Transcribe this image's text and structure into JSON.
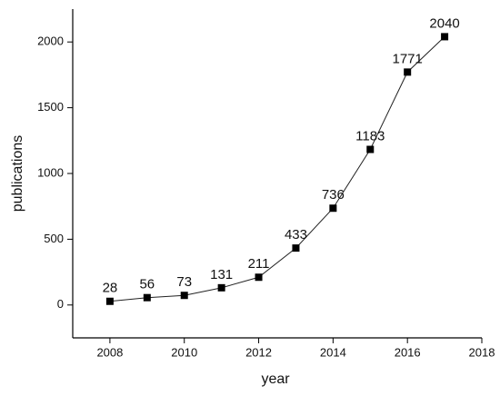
{
  "chart_data": {
    "type": "line",
    "x_label": "year",
    "y_label": "publications",
    "x": [
      2008,
      2009,
      2010,
      2011,
      2012,
      2013,
      2014,
      2015,
      2016,
      2017
    ],
    "series": [
      {
        "color": "#222222",
        "values": [
          28,
          56,
          73,
          131,
          211,
          433,
          736,
          1183,
          1771,
          2040
        ]
      }
    ],
    "xlim": [
      2007,
      2018
    ],
    "xticks": [
      2008,
      2010,
      2012,
      2014,
      2016,
      2018
    ],
    "ylim": [
      -250,
      2250
    ],
    "yticks": [
      0,
      500,
      1000,
      1500,
      2000
    ],
    "data_labels": true
  }
}
